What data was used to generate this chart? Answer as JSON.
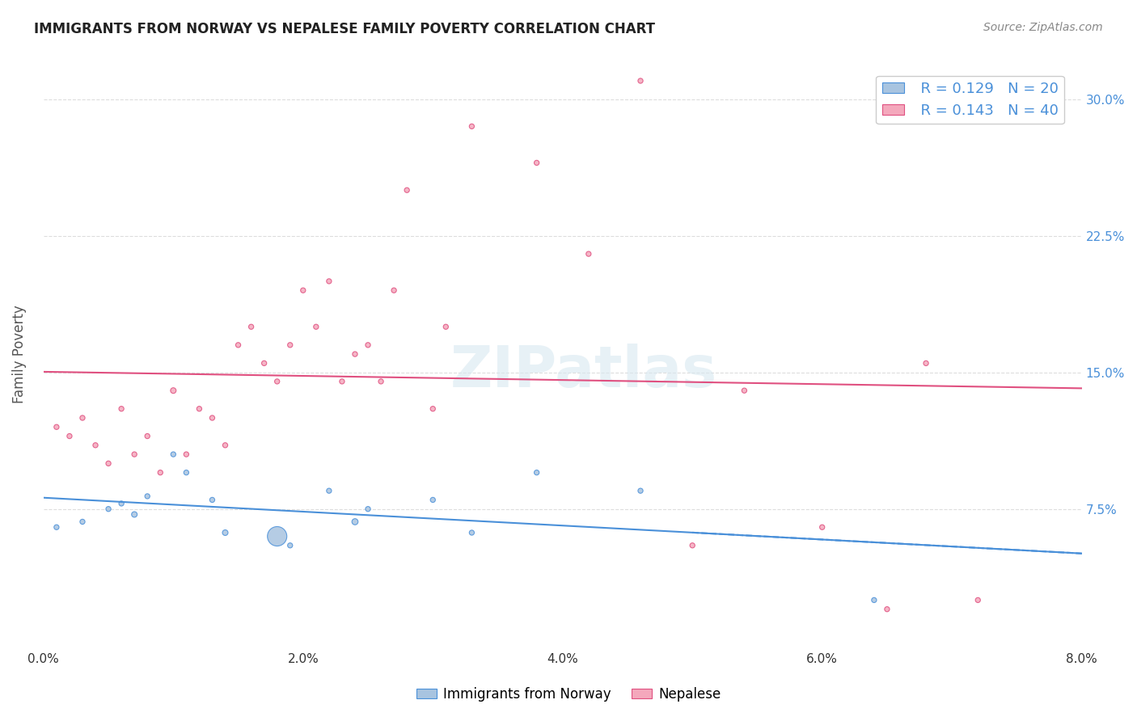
{
  "title": "IMMIGRANTS FROM NORWAY VS NEPALESE FAMILY POVERTY CORRELATION CHART",
  "source": "Source: ZipAtlas.com",
  "xlabel": "",
  "ylabel": "Family Poverty",
  "xlim": [
    0.0,
    0.08
  ],
  "ylim": [
    0.0,
    0.32
  ],
  "xtick_labels": [
    "0.0%",
    "2.0%",
    "4.0%",
    "6.0%",
    "8.0%"
  ],
  "xtick_vals": [
    0.0,
    0.02,
    0.04,
    0.06,
    0.08
  ],
  "ytick_labels": [
    "7.5%",
    "15.0%",
    "22.5%",
    "30.0%"
  ],
  "ytick_vals": [
    0.075,
    0.15,
    0.225,
    0.3
  ],
  "right_ytick_labels": [
    "7.5%",
    "15.0%",
    "22.5%",
    "30.0%"
  ],
  "right_ytick_vals": [
    0.075,
    0.15,
    0.225,
    0.3
  ],
  "norway_color": "#a8c4e0",
  "nepalese_color": "#f4a8bc",
  "norway_line_color": "#4a90d9",
  "nepalese_line_color": "#e05080",
  "norway_R": 0.129,
  "norway_N": 20,
  "nepalese_R": 0.143,
  "nepalese_N": 40,
  "legend_label_norway": "Immigrants from Norway",
  "legend_label_nepalese": "Nepalese",
  "watermark": "ZIPatlas",
  "norway_x": [
    0.001,
    0.003,
    0.005,
    0.006,
    0.007,
    0.008,
    0.01,
    0.011,
    0.013,
    0.014,
    0.018,
    0.019,
    0.022,
    0.024,
    0.025,
    0.03,
    0.033,
    0.038,
    0.046,
    0.064
  ],
  "norway_y": [
    0.065,
    0.068,
    0.075,
    0.078,
    0.072,
    0.082,
    0.105,
    0.095,
    0.08,
    0.062,
    0.06,
    0.055,
    0.085,
    0.068,
    0.075,
    0.08,
    0.062,
    0.095,
    0.085,
    0.025
  ],
  "norway_sizes": [
    20,
    20,
    20,
    20,
    25,
    20,
    20,
    20,
    20,
    25,
    300,
    20,
    20,
    30,
    20,
    20,
    20,
    20,
    20,
    20
  ],
  "nepalese_x": [
    0.001,
    0.002,
    0.003,
    0.004,
    0.005,
    0.006,
    0.007,
    0.008,
    0.009,
    0.01,
    0.011,
    0.012,
    0.013,
    0.014,
    0.015,
    0.016,
    0.017,
    0.018,
    0.019,
    0.02,
    0.021,
    0.022,
    0.023,
    0.024,
    0.025,
    0.026,
    0.027,
    0.028,
    0.03,
    0.031,
    0.033,
    0.038,
    0.042,
    0.046,
    0.05,
    0.054,
    0.06,
    0.065,
    0.068,
    0.072
  ],
  "nepalese_y": [
    0.12,
    0.115,
    0.125,
    0.11,
    0.1,
    0.13,
    0.105,
    0.115,
    0.095,
    0.14,
    0.105,
    0.13,
    0.125,
    0.11,
    0.165,
    0.175,
    0.155,
    0.145,
    0.165,
    0.195,
    0.175,
    0.2,
    0.145,
    0.16,
    0.165,
    0.145,
    0.195,
    0.25,
    0.13,
    0.175,
    0.285,
    0.265,
    0.215,
    0.31,
    0.055,
    0.14,
    0.065,
    0.02,
    0.155,
    0.025
  ],
  "nepalese_sizes": [
    20,
    20,
    20,
    20,
    20,
    20,
    20,
    20,
    20,
    25,
    20,
    20,
    20,
    20,
    20,
    20,
    20,
    20,
    20,
    20,
    20,
    20,
    20,
    20,
    20,
    20,
    20,
    20,
    20,
    20,
    20,
    20,
    20,
    20,
    20,
    20,
    20,
    20,
    20,
    20
  ]
}
